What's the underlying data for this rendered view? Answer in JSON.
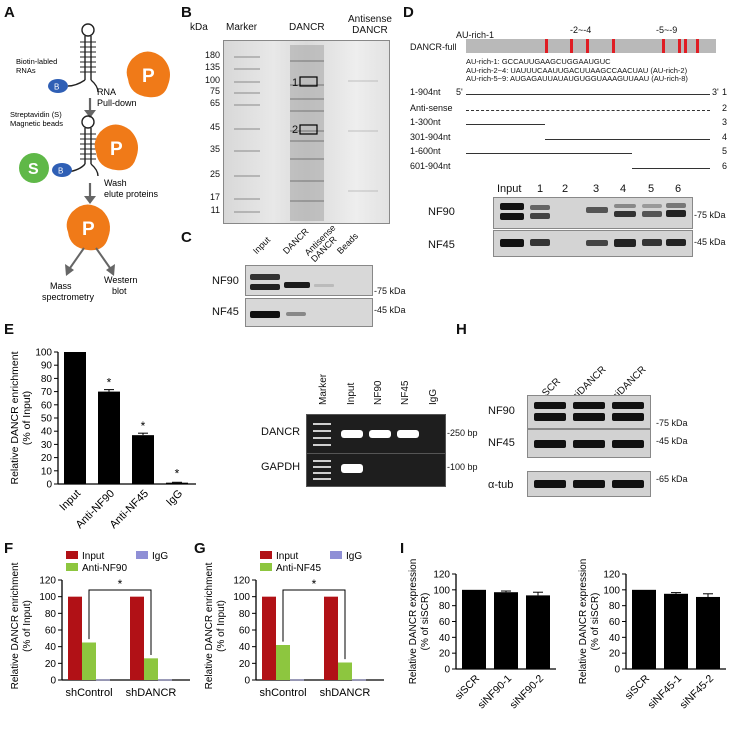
{
  "panel_letters": {
    "A": "A",
    "B": "B",
    "C": "C",
    "D": "D",
    "E": "E",
    "F": "F",
    "G": "G",
    "H": "H",
    "I": "I"
  },
  "panelA": {
    "biotin": "Biotin-labled\nRNAs",
    "b": "B",
    "p": "P",
    "s": "S",
    "pulldown": "RNA\nPull-down",
    "strep": "Streptavidin (S)\nMagnetic beads",
    "wash": "Wash\nelute proteins",
    "mass": "Mass\nspectrometry",
    "western": "Western\nblot"
  },
  "panelB": {
    "kda": "kDa",
    "lanes": [
      "Marker",
      "DANCR",
      "Antisense\nDANCR"
    ],
    "markers": [
      "180",
      "135",
      "100",
      "75",
      "65",
      "45",
      "35",
      "25",
      "17",
      "11"
    ],
    "band1": "1",
    "band2": "2"
  },
  "panelC": {
    "lanes": [
      "Input",
      "DANCR",
      "Antisense DANCR",
      "Beads"
    ],
    "rows": [
      "NF90",
      "NF45"
    ],
    "mw": [
      "-75 kDa",
      "-45 kDa"
    ]
  },
  "panelD": {
    "full_label": "DANCR-full",
    "au1": "AU-rich-1",
    "au2": "-2~-4",
    "au3": "-5~-9",
    "seq1": "AU-rich-1: GCCAUUGAAGCUGGAAUGUC",
    "seq2": "AU-rich-2~4: UAUUUCAAUUGACUUAAGCCAACUAU (AU-rich-2)",
    "seq3": "AU-rich-5~9: AUGAGAUUAUAUGUGGUAAAGUUAAU (AU-rich-8)",
    "constructs": [
      {
        "name": "1-904nt",
        "num": "1",
        "five": "5'",
        "three": "3'"
      },
      {
        "name": "Anti-sense",
        "num": "2"
      },
      {
        "name": "1-300nt",
        "num": "3"
      },
      {
        "name": "301-904nt",
        "num": "4"
      },
      {
        "name": "1-600nt",
        "num": "5"
      },
      {
        "name": "601-904nt",
        "num": "6"
      }
    ],
    "lanes": [
      "Input",
      "1",
      "2",
      "3",
      "4",
      "5",
      "6"
    ],
    "rows": [
      "NF90",
      "NF45"
    ],
    "mw": [
      "-75 kDa",
      "-45 kDa"
    ]
  },
  "panelE": {
    "ylabel": "Relative DANCR enrichment\n(% of Input)",
    "categories": [
      "Input",
      "Anti-NF90",
      "Anti-NF45",
      "IgG"
    ],
    "star": "*",
    "gel_lanes": [
      "Marker",
      "Input",
      "NF90",
      "NF45",
      "IgG"
    ],
    "gel_rows": [
      "DANCR",
      "GAPDH"
    ],
    "gel_mw": [
      "-250 bp",
      "-100 bp"
    ]
  },
  "panelF": {
    "ylabel": "Relative DANCR enrichment\n(% of Input)",
    "legend": [
      "Input",
      "Anti-NF90",
      "IgG"
    ],
    "groups": [
      "shControl",
      "shDANCR"
    ],
    "star": "*"
  },
  "panelG": {
    "ylabel": "Relative DANCR enrichment\n(% of Input)",
    "legend": [
      "Input",
      "Anti-NF45",
      "IgG"
    ],
    "groups": [
      "shControl",
      "shDANCR"
    ],
    "star": "*"
  },
  "panelH": {
    "lanes": [
      "SCR",
      "siDANCR\n-1",
      "siDANCR\n-2"
    ],
    "rows": [
      "NF90",
      "NF45",
      "α-tub"
    ],
    "mw": [
      "-75 kDa",
      "-45 kDa",
      "-65 kDa"
    ]
  },
  "panelI": {
    "ylabel": "Relative DANCR expression\n(% of siSCR)",
    "left_categories": [
      "siSCR",
      "siNF90-1",
      "siNF90-2"
    ],
    "right_categories": [
      "siSCR",
      "siNF45-1",
      "siNF45-2"
    ]
  },
  "colors": {
    "input": "#b11116",
    "anti": "#8dc63f",
    "igg": "#8f8fd6",
    "bar": "#000000"
  },
  "chart_data": [
    {
      "type": "bar",
      "panel": "E",
      "categories": [
        "Input",
        "Anti-NF90",
        "Anti-NF45",
        "IgG"
      ],
      "values": [
        100,
        70,
        37,
        1
      ],
      "errors": [
        0,
        1.5,
        1.5,
        0.3
      ],
      "ylim": [
        0,
        100
      ],
      "yticks": [
        0,
        10,
        20,
        30,
        40,
        50,
        60,
        70,
        80,
        90,
        100
      ],
      "ylabel": "Relative DANCR enrichment (% of Input)"
    },
    {
      "type": "bar",
      "panel": "F",
      "categories": [
        "shControl",
        "shDANCR"
      ],
      "series": [
        {
          "name": "Input",
          "values": [
            100,
            100
          ]
        },
        {
          "name": "Anti-NF90",
          "values": [
            45,
            26
          ]
        },
        {
          "name": "IgG",
          "values": [
            0.5,
            0.5
          ]
        }
      ],
      "ylim": [
        0,
        120
      ],
      "yticks": [
        0,
        20,
        40,
        60,
        80,
        100,
        120
      ],
      "ylabel": "Relative DANCR enrichment (% of Input)"
    },
    {
      "type": "bar",
      "panel": "G",
      "categories": [
        "shControl",
        "shDANCR"
      ],
      "series": [
        {
          "name": "Input",
          "values": [
            100,
            100
          ]
        },
        {
          "name": "Anti-NF45",
          "values": [
            42,
            21
          ]
        },
        {
          "name": "IgG",
          "values": [
            0.5,
            0.5
          ]
        }
      ],
      "ylim": [
        0,
        120
      ],
      "yticks": [
        0,
        20,
        40,
        60,
        80,
        100,
        120
      ],
      "ylabel": "Relative DANCR enrichment (% of Input)"
    },
    {
      "type": "bar",
      "panel": "I-left",
      "categories": [
        "siSCR",
        "siNF90-1",
        "siNF90-2"
      ],
      "values": [
        100,
        97,
        93
      ],
      "errors": [
        0,
        1.5,
        4
      ],
      "ylim": [
        0,
        120
      ],
      "yticks": [
        0,
        20,
        40,
        60,
        80,
        100,
        120
      ],
      "ylabel": "Relative DANCR expression (% of siSCR)"
    },
    {
      "type": "bar",
      "panel": "I-right",
      "categories": [
        "siSCR",
        "siNF45-1",
        "siNF45-2"
      ],
      "values": [
        100,
        95,
        91
      ],
      "errors": [
        0,
        1.5,
        4
      ],
      "ylim": [
        0,
        120
      ],
      "yticks": [
        0,
        20,
        40,
        60,
        80,
        100,
        120
      ],
      "ylabel": "Relative DANCR expression (% of siSCR)"
    }
  ]
}
